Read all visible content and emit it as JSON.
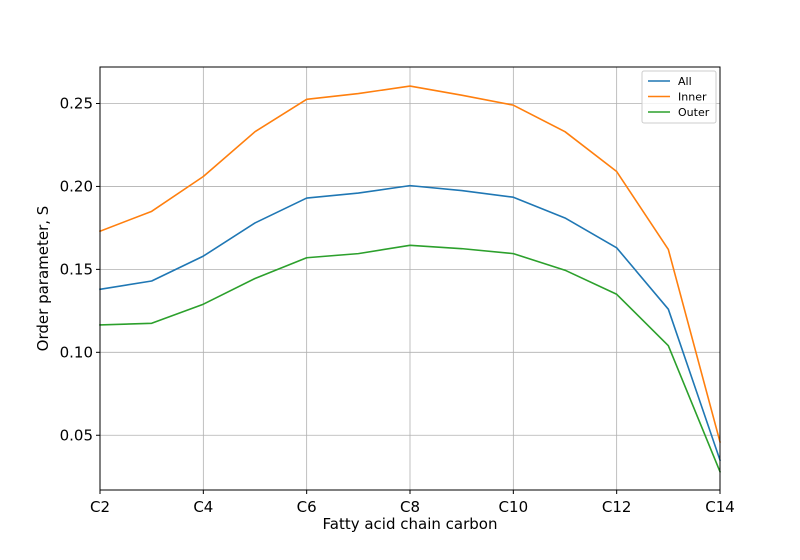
{
  "chart_data": {
    "type": "line",
    "xlabel": "Fatty acid chain carbon",
    "ylabel": "Order parameter, S",
    "x_tick_labels": [
      "C2",
      "C4",
      "C6",
      "C8",
      "C10",
      "C12",
      "C14"
    ],
    "x_tick_positions": [
      2,
      4,
      6,
      8,
      10,
      12,
      14
    ],
    "y_ticks": [
      0.05,
      0.1,
      0.15,
      0.2,
      0.25
    ],
    "y_tick_labels": [
      "0.05",
      "0.10",
      "0.15",
      "0.20",
      "0.25"
    ],
    "x": [
      2,
      3,
      4,
      5,
      6,
      7,
      8,
      9,
      10,
      11,
      12,
      13,
      14
    ],
    "xlim": [
      2,
      14
    ],
    "ylim": [
      0.017,
      0.272
    ],
    "grid": true,
    "legend_position": "top-right",
    "series": [
      {
        "name": "All",
        "color": "#1f77b4",
        "values": [
          0.138,
          0.143,
          0.158,
          0.178,
          0.193,
          0.196,
          0.2005,
          0.1975,
          0.1935,
          0.181,
          0.163,
          0.126,
          0.035
        ]
      },
      {
        "name": "Inner",
        "color": "#ff7f0e",
        "values": [
          0.173,
          0.185,
          0.206,
          0.233,
          0.2525,
          0.256,
          0.2605,
          0.255,
          0.249,
          0.233,
          0.209,
          0.162,
          0.046
        ]
      },
      {
        "name": "Outer",
        "color": "#2ca02c",
        "values": [
          0.1165,
          0.1175,
          0.129,
          0.1445,
          0.157,
          0.1595,
          0.1645,
          0.1625,
          0.1595,
          0.1495,
          0.135,
          0.104,
          0.028
        ]
      }
    ]
  }
}
